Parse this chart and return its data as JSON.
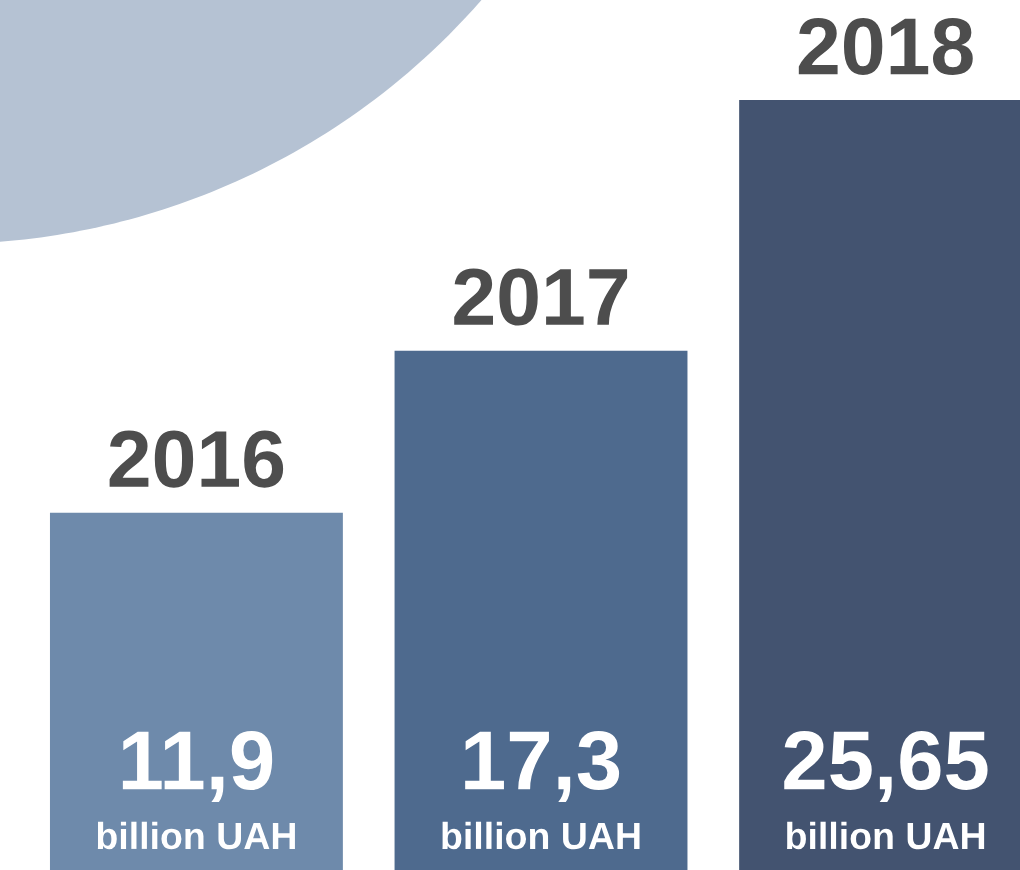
{
  "chart_data": {
    "type": "bar",
    "categories": [
      "2016",
      "2017",
      "2018"
    ],
    "values": [
      11.9,
      17.3,
      25.65
    ],
    "colors": [
      "#6e8aab",
      "#4e6a8e",
      "#435370"
    ],
    "value_labels": [
      "11,9",
      "17,3",
      "25,65"
    ],
    "annotations": [
      "billion UAH",
      "billion UAH",
      "billion UAH"
    ]
  }
}
